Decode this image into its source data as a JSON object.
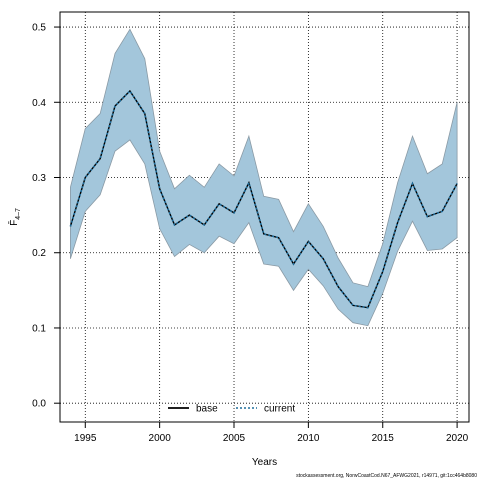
{
  "chart_data": {
    "type": "line",
    "title": "",
    "xlabel": "Years",
    "ylabel": "F̄",
    "ylabel_sub": "4–7",
    "xlim": [
      1993.3,
      2020.8
    ],
    "ylim": [
      -0.025,
      0.52
    ],
    "xticks": [
      1995,
      2000,
      2005,
      2010,
      2015,
      2020
    ],
    "yticks": [
      0.0,
      0.1,
      0.2,
      0.3,
      0.4,
      0.5
    ],
    "grid": true,
    "legend_placement": "bottom",
    "x": [
      1994,
      1995,
      1996,
      1997,
      1998,
      1999,
      2000,
      2001,
      2002,
      2003,
      2004,
      2005,
      2006,
      2007,
      2008,
      2009,
      2010,
      2011,
      2012,
      2013,
      2014,
      2015,
      2016,
      2017,
      2018,
      2019,
      2020
    ],
    "series": [
      {
        "name": "base",
        "color": "#000000",
        "style": "solid",
        "values": [
          0.235,
          0.3,
          0.325,
          0.395,
          0.415,
          0.385,
          0.285,
          0.237,
          0.25,
          0.237,
          0.265,
          0.253,
          0.293,
          0.225,
          0.22,
          0.185,
          0.215,
          0.192,
          0.155,
          0.13,
          0.127,
          0.175,
          0.24,
          0.292,
          0.248,
          0.255,
          0.292
        ]
      },
      {
        "name": "current",
        "color": "#1f6e9c",
        "style": "dashed",
        "values": [
          0.235,
          0.3,
          0.325,
          0.395,
          0.415,
          0.385,
          0.285,
          0.237,
          0.25,
          0.237,
          0.265,
          0.253,
          0.293,
          0.225,
          0.22,
          0.185,
          0.215,
          0.192,
          0.155,
          0.13,
          0.127,
          0.175,
          0.24,
          0.292,
          0.248,
          0.255,
          0.292
        ]
      }
    ],
    "band": {
      "color": "#a3c6db",
      "edge_color": "#8a9aa5",
      "lower": [
        0.192,
        0.255,
        0.277,
        0.335,
        0.35,
        0.318,
        0.232,
        0.195,
        0.211,
        0.2,
        0.222,
        0.212,
        0.24,
        0.185,
        0.182,
        0.15,
        0.178,
        0.156,
        0.125,
        0.107,
        0.103,
        0.146,
        0.202,
        0.242,
        0.203,
        0.205,
        0.22
      ],
      "upper": [
        0.287,
        0.365,
        0.385,
        0.465,
        0.497,
        0.458,
        0.335,
        0.285,
        0.303,
        0.287,
        0.318,
        0.302,
        0.355,
        0.275,
        0.271,
        0.228,
        0.265,
        0.235,
        0.193,
        0.16,
        0.155,
        0.212,
        0.293,
        0.355,
        0.305,
        0.318,
        0.4
      ]
    },
    "footer": "stockassessment.org, NorwCoastCod.N67_AFWG2021, r14971, git:1cc464b8080"
  }
}
